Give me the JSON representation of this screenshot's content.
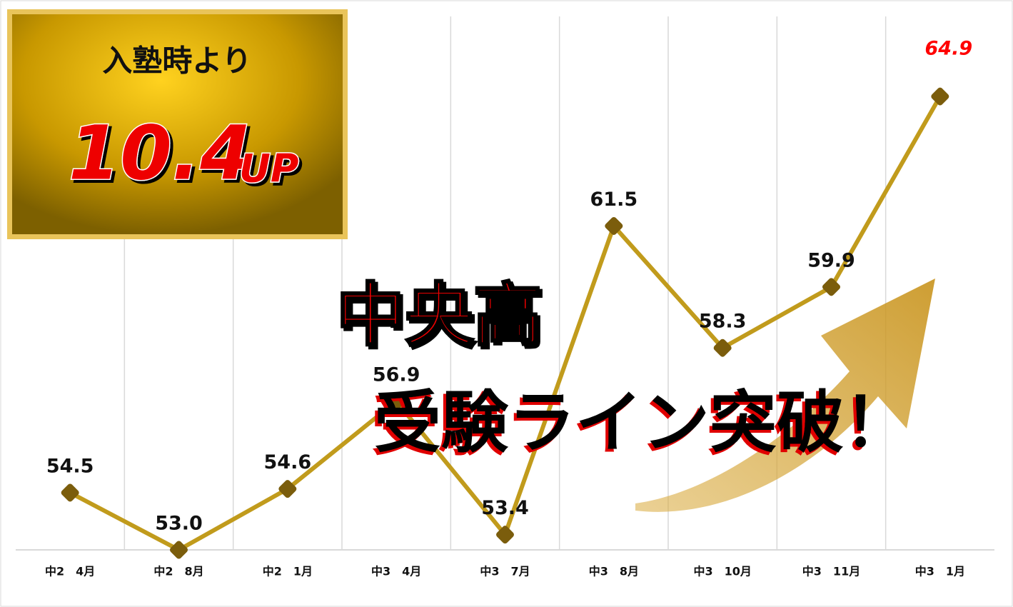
{
  "chart_data": {
    "type": "line",
    "categories": [
      "中2　4月",
      "中2　8月",
      "中2　1月",
      "中3　4月",
      "中3　7月",
      "中3　8月",
      "中3　10月",
      "中3　11月",
      "中3　1月"
    ],
    "values": [
      54.5,
      53.0,
      54.6,
      56.9,
      53.4,
      61.5,
      58.3,
      59.9,
      64.9
    ],
    "value_labels": [
      "54.5",
      "53.0",
      "54.6",
      "56.9",
      "53.4",
      "61.5",
      "58.3",
      "59.9",
      "64.9"
    ],
    "color": "#c19b1c",
    "marker_color": "#7b5d0c",
    "highlight_color": "#ff0000",
    "ylim": [
      53,
      67
    ],
    "grid": true,
    "annotations": {
      "badge_heading": "入塾時より",
      "badge_value": "10.4",
      "badge_suffix": "UP",
      "headline": "中央高",
      "subheadline": "受験ライン突破！"
    }
  }
}
